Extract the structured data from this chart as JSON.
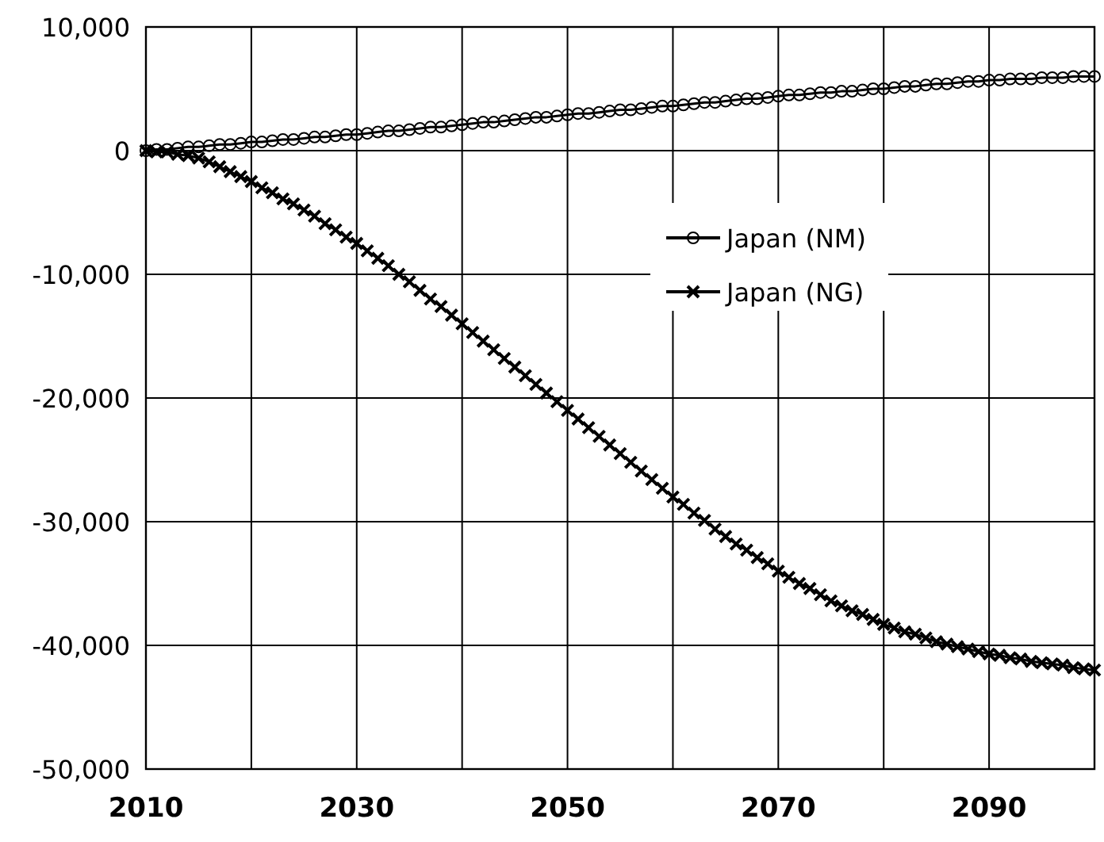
{
  "chart_data": {
    "type": "line",
    "xlim": [
      2010,
      2100
    ],
    "ylim": [
      -50000,
      10000
    ],
    "xticks": [
      2010,
      {
        "value": 2020,
        "label": null
      },
      2030,
      {
        "value": 2040,
        "label": null
      },
      2050,
      {
        "value": 2060,
        "label": null
      },
      2070,
      {
        "value": 2080,
        "label": null
      },
      2090,
      {
        "value": 2100,
        "label": null
      }
    ],
    "yticks": [
      {
        "value": -50000,
        "label": "-50,000"
      },
      {
        "value": -40000,
        "label": "-40,000"
      },
      {
        "value": -30000,
        "label": "-30,000"
      },
      {
        "value": -20000,
        "label": "-20,000"
      },
      {
        "value": -10000,
        "label": "-10,000"
      },
      0,
      {
        "value": 10000,
        "label": "10,000"
      }
    ],
    "grid": true,
    "legend": "right",
    "x": [
      2010,
      2011,
      2012,
      2013,
      2014,
      2015,
      2016,
      2017,
      2018,
      2019,
      2020,
      2021,
      2022,
      2023,
      2024,
      2025,
      2026,
      2027,
      2028,
      2029,
      2030,
      2031,
      2032,
      2033,
      2034,
      2035,
      2036,
      2037,
      2038,
      2039,
      2040,
      2041,
      2042,
      2043,
      2044,
      2045,
      2046,
      2047,
      2048,
      2049,
      2050,
      2051,
      2052,
      2053,
      2054,
      2055,
      2056,
      2057,
      2058,
      2059,
      2060,
      2061,
      2062,
      2063,
      2064,
      2065,
      2066,
      2067,
      2068,
      2069,
      2070,
      2071,
      2072,
      2073,
      2074,
      2075,
      2076,
      2077,
      2078,
      2079,
      2080,
      2081,
      2082,
      2083,
      2084,
      2085,
      2086,
      2087,
      2088,
      2089,
      2090,
      2091,
      2092,
      2093,
      2094,
      2095,
      2096,
      2097,
      2098,
      2099,
      2100
    ],
    "series": [
      {
        "name": "Japan (NM)",
        "color": "#000000",
        "marker": "circle",
        "values": [
          0,
          100,
          100,
          200,
          300,
          300,
          400,
          500,
          500,
          600,
          700,
          700,
          800,
          900,
          900,
          1000,
          1100,
          1100,
          1200,
          1300,
          1300,
          1400,
          1500,
          1600,
          1600,
          1700,
          1800,
          1900,
          1900,
          2000,
          2100,
          2200,
          2300,
          2300,
          2400,
          2500,
          2600,
          2700,
          2700,
          2800,
          2900,
          3000,
          3000,
          3100,
          3200,
          3300,
          3300,
          3400,
          3500,
          3600,
          3600,
          3700,
          3800,
          3900,
          3900,
          4000,
          4100,
          4200,
          4200,
          4300,
          4400,
          4500,
          4500,
          4600,
          4700,
          4700,
          4800,
          4800,
          4900,
          5000,
          5000,
          5100,
          5200,
          5200,
          5300,
          5400,
          5400,
          5500,
          5600,
          5600,
          5700,
          5700,
          5800,
          5800,
          5800,
          5900,
          5900,
          5900,
          6000,
          6000,
          6000
        ]
      },
      {
        "name": "Japan (NG)",
        "color": "#000000",
        "marker": "cross",
        "values": [
          0,
          -100,
          -100,
          -300,
          -400,
          -600,
          -900,
          -1300,
          -1700,
          -2100,
          -2500,
          -3000,
          -3400,
          -3900,
          -4300,
          -4800,
          -5300,
          -5900,
          -6400,
          -7000,
          -7500,
          -8100,
          -8700,
          -9300,
          -10000,
          -10600,
          -11300,
          -12000,
          -12600,
          -13300,
          -14000,
          -14700,
          -15400,
          -16100,
          -16800,
          -17500,
          -18200,
          -18900,
          -19600,
          -20300,
          -21000,
          -21700,
          -22400,
          -23100,
          -23800,
          -24500,
          -25200,
          -25900,
          -26600,
          -27300,
          -28000,
          -28600,
          -29300,
          -29900,
          -30600,
          -31200,
          -31800,
          -32300,
          -32900,
          -33400,
          -34000,
          -34500,
          -35000,
          -35400,
          -35900,
          -36400,
          -36800,
          -37200,
          -37500,
          -37900,
          -38300,
          -38600,
          -38900,
          -39100,
          -39400,
          -39700,
          -39900,
          -40100,
          -40300,
          -40500,
          -40700,
          -40800,
          -41000,
          -41100,
          -41300,
          -41400,
          -41500,
          -41600,
          -41800,
          -41900,
          -42000
        ]
      }
    ]
  }
}
